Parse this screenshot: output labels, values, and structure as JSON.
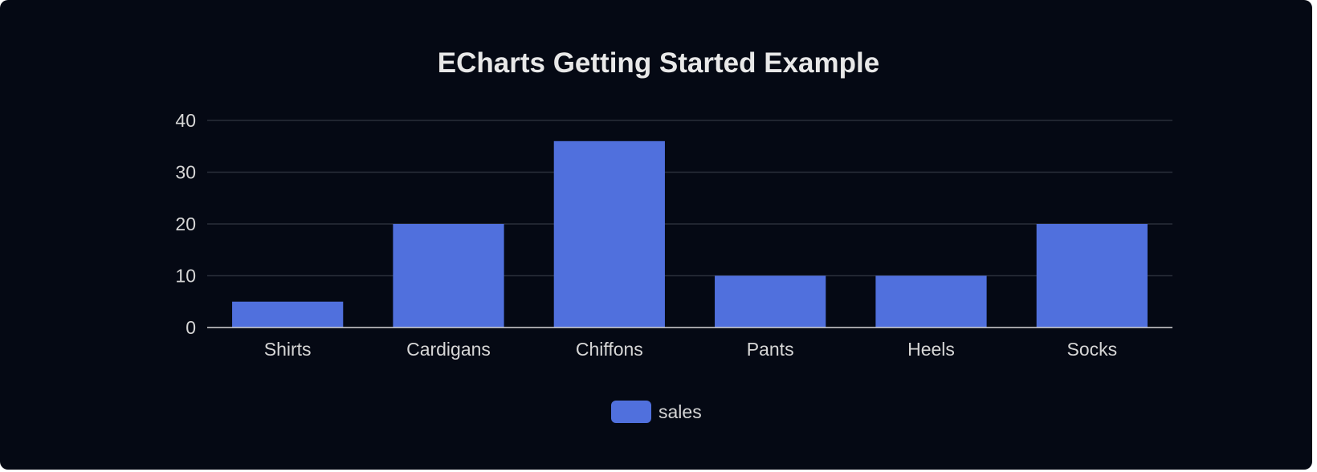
{
  "chart_data": {
    "type": "bar",
    "title": "ECharts Getting Started Example",
    "categories": [
      "Shirts",
      "Cardigans",
      "Chiffons",
      "Pants",
      "Heels",
      "Socks"
    ],
    "series": [
      {
        "name": "sales",
        "values": [
          5,
          20,
          36,
          10,
          10,
          20
        ]
      }
    ],
    "xlabel": "",
    "ylabel": "",
    "ylim": [
      0,
      40
    ],
    "yticks": [
      "0",
      "10",
      "20",
      "30",
      "40"
    ],
    "grid": true,
    "legend_position": "bottom-center"
  },
  "colors": {
    "background": "#050914",
    "bar": "#5070dd",
    "gridline": "#2a2f3a",
    "axis_line": "#d6d6d6",
    "text": "#d6d6d6",
    "title": "#e8e8e8"
  }
}
